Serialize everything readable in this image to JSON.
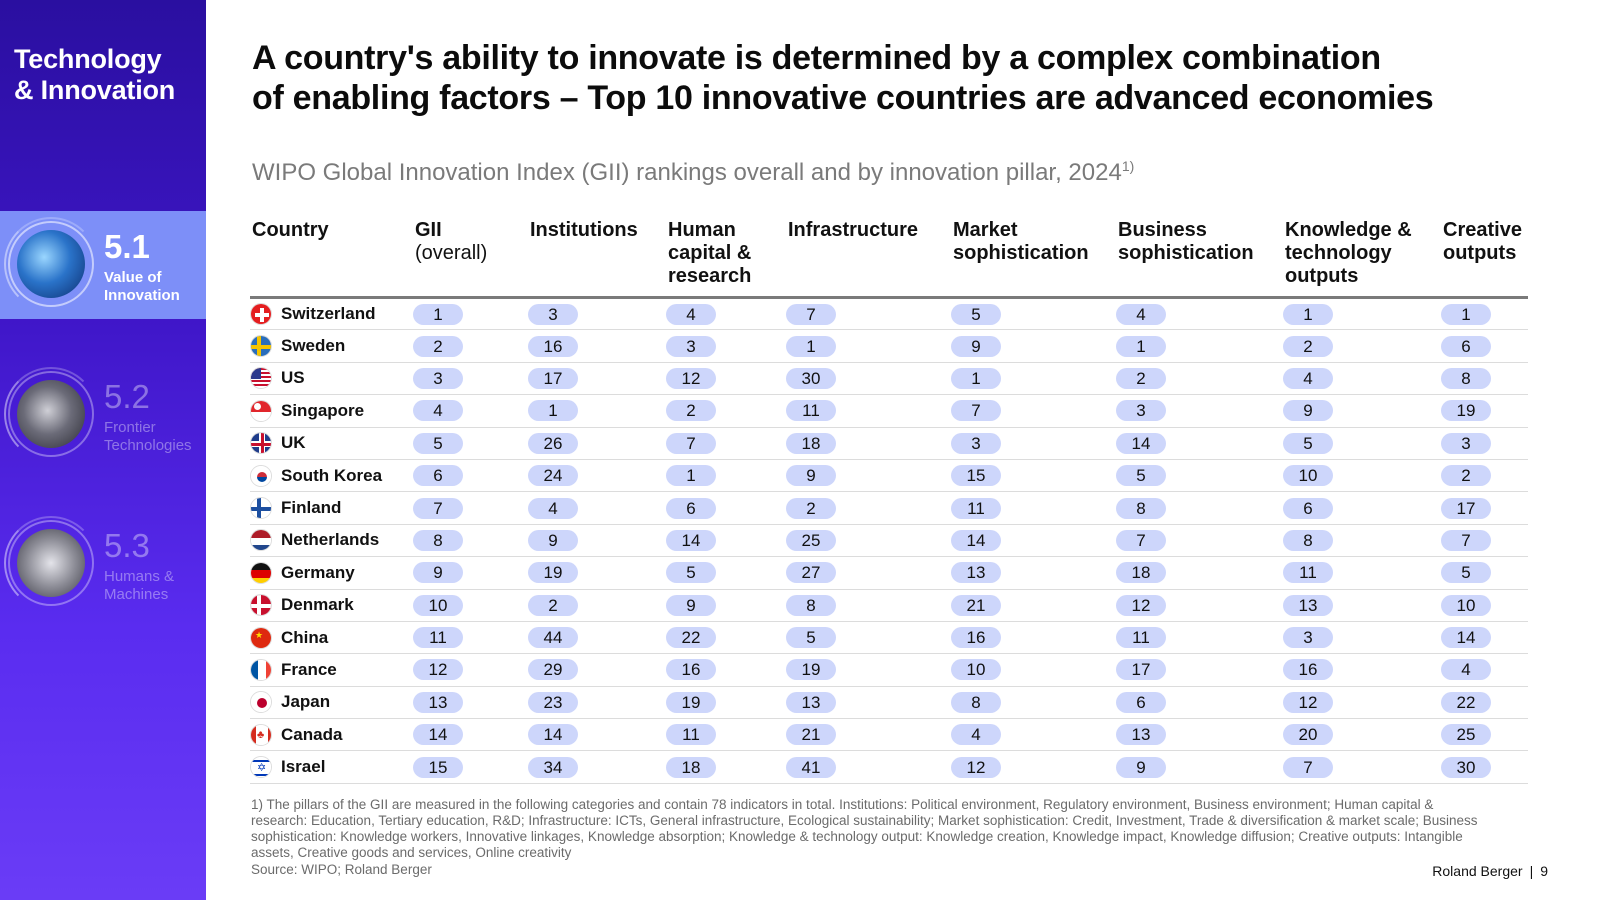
{
  "sidebar": {
    "brand_line1": "Technology",
    "brand_line2": "& Innovation",
    "chapters": [
      {
        "num": "5.1",
        "label_line1": "Value of",
        "label_line2": "Innovation",
        "active": true,
        "icon": "money-innovation-icon"
      },
      {
        "num": "5.2",
        "label_line1": "Frontier",
        "label_line2": "Technologies",
        "active": false,
        "icon": "ai-brain-icon"
      },
      {
        "num": "5.3",
        "label_line1": "Humans &",
        "label_line2": "Machines",
        "active": false,
        "icon": "handshake-icon"
      }
    ]
  },
  "header": {
    "title_line1": "A country's ability to innovate is determined by a complex combination",
    "title_line2": "of enabling factors – Top 10 innovative countries are advanced economies",
    "subtitle": "WIPO Global Innovation Index (GII) rankings overall and by innovation pillar, 2024",
    "subtitle_sup": "1)"
  },
  "table": {
    "columns": [
      {
        "line1": "Country"
      },
      {
        "line1": "GII",
        "line2": "(overall)"
      },
      {
        "line1": "Institutions"
      },
      {
        "line1": "Human",
        "line2": "capital &",
        "line3": "research"
      },
      {
        "line1": "Infrastructure"
      },
      {
        "line1": "Market",
        "line2": "sophistication"
      },
      {
        "line1": "Business",
        "line2": "sophistication"
      },
      {
        "line1": "Knowledge &",
        "line2": "technology",
        "line3": "outputs"
      },
      {
        "line1": "Creative",
        "line2": "outputs"
      }
    ],
    "rows": [
      {
        "country": "Switzerland",
        "flag": "ch",
        "values": [
          "1",
          "3",
          "4",
          "7",
          "5",
          "4",
          "1",
          "1"
        ]
      },
      {
        "country": "Sweden",
        "flag": "se",
        "values": [
          "2",
          "16",
          "3",
          "1",
          "9",
          "1",
          "2",
          "6"
        ]
      },
      {
        "country": "US",
        "flag": "us",
        "values": [
          "3",
          "17",
          "12",
          "30",
          "1",
          "2",
          "4",
          "8"
        ]
      },
      {
        "country": "Singapore",
        "flag": "sg",
        "values": [
          "4",
          "1",
          "2",
          "11",
          "7",
          "3",
          "9",
          "19"
        ]
      },
      {
        "country": "UK",
        "flag": "uk",
        "values": [
          "5",
          "26",
          "7",
          "18",
          "3",
          "14",
          "5",
          "3"
        ]
      },
      {
        "country": "South Korea",
        "flag": "kr",
        "values": [
          "6",
          "24",
          "1",
          "9",
          "15",
          "5",
          "10",
          "2"
        ]
      },
      {
        "country": "Finland",
        "flag": "fi",
        "values": [
          "7",
          "4",
          "6",
          "2",
          "11",
          "8",
          "6",
          "17"
        ]
      },
      {
        "country": "Netherlands",
        "flag": "nl",
        "values": [
          "8",
          "9",
          "14",
          "25",
          "14",
          "7",
          "8",
          "7"
        ]
      },
      {
        "country": "Germany",
        "flag": "de",
        "values": [
          "9",
          "19",
          "5",
          "27",
          "13",
          "18",
          "11",
          "5"
        ]
      },
      {
        "country": "Denmark",
        "flag": "dk",
        "values": [
          "10",
          "2",
          "9",
          "8",
          "21",
          "12",
          "13",
          "10"
        ]
      },
      {
        "country": "China",
        "flag": "cn",
        "values": [
          "11",
          "44",
          "22",
          "5",
          "16",
          "11",
          "3",
          "14"
        ]
      },
      {
        "country": "France",
        "flag": "fr",
        "values": [
          "12",
          "29",
          "16",
          "19",
          "10",
          "17",
          "16",
          "4"
        ]
      },
      {
        "country": "Japan",
        "flag": "jp",
        "values": [
          "13",
          "23",
          "19",
          "13",
          "8",
          "6",
          "12",
          "22"
        ]
      },
      {
        "country": "Canada",
        "flag": "ca",
        "values": [
          "14",
          "14",
          "11",
          "21",
          "4",
          "13",
          "20",
          "25"
        ]
      },
      {
        "country": "Israel",
        "flag": "il",
        "values": [
          "15",
          "34",
          "18",
          "41",
          "12",
          "9",
          "7",
          "30"
        ]
      }
    ]
  },
  "footnote": "1) The pillars of the GII are measured in the following categories and contain 78 indicators in total. Institutions: Political environment, Regulatory environment, Business environment; Human capital & research: Education, Tertiary education, R&D; Infrastructure: ICTs, General infrastructure, Ecological sustainability; Market sophistication: Credit, Investment, Trade & diversification & market scale; Business sophistication: Knowledge workers, Innovative linkages, Knowledge absorption; Knowledge & technology output: Knowledge creation, Knowledge impact, Knowledge diffusion; Creative outputs: Intangible assets, Creative goods and services, Online creativity",
  "source": "Source: WIPO; Roland Berger",
  "footer": {
    "brand": "Roland Berger",
    "separator": "|",
    "page": "9"
  },
  "colors": {
    "sidebar_top": "#2a0fa0",
    "sidebar_bottom": "#6a3cf6",
    "active_chapter": "#7d8ff8",
    "pill": "#cdd6fb"
  }
}
